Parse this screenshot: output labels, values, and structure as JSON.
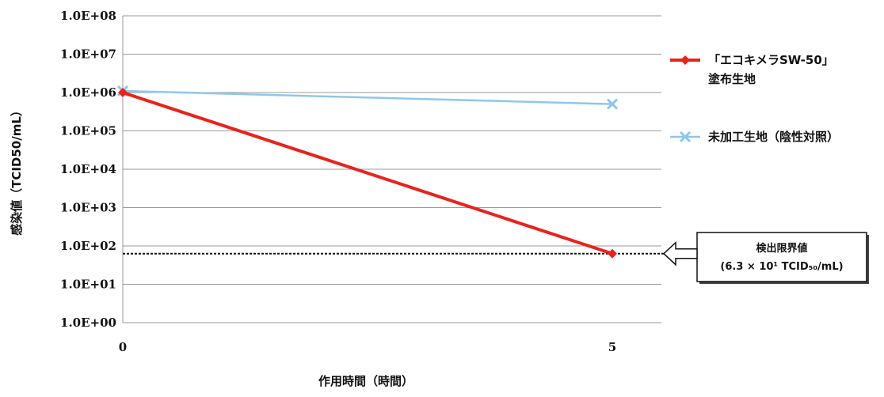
{
  "chart_data": {
    "type": "line",
    "x": [
      0,
      5
    ],
    "xlabel": "作用時間（時間）",
    "ylabel": "感染値（TCID50/mL）",
    "yscale": "log",
    "ylim": [
      1,
      100000000
    ],
    "xlim": [
      0,
      5
    ],
    "y_tick_labels": [
      "1.0E+00",
      "1.0E+01",
      "1.0E+02",
      "1.0E+03",
      "1.0E+04",
      "1.0E+05",
      "1.0E+06",
      "1.0E+07",
      "1.0E+08"
    ],
    "x_tick_labels": [
      "0",
      "5"
    ],
    "grid": true,
    "legend_position": "right",
    "series": [
      {
        "name": "「エコキメラSW-50」塗布生地",
        "name_lines": [
          "「エコキメラSW-50」",
          "塗布生地"
        ],
        "marker": "diamond",
        "color": "#e8231d",
        "values": [
          1000000,
          63
        ]
      },
      {
        "name": "未加工生地（陰性対照）",
        "name_lines": [
          "未加工生地（陰性対照）"
        ],
        "marker": "x",
        "color": "#8ec7ea",
        "values": [
          1100000,
          500000
        ]
      }
    ],
    "annotation": {
      "value": 63,
      "line1": "検出限界値",
      "line2": "(6.3 × 10¹ TCID₅₀/mL)"
    }
  }
}
